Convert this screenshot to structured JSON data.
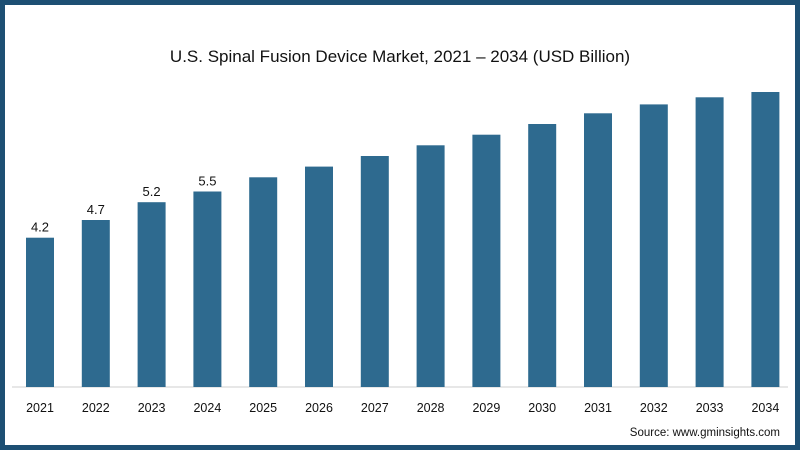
{
  "chart_data": {
    "type": "bar",
    "title": "U.S. Spinal Fusion Device Market, 2021 – 2034 (USD Billion)",
    "categories": [
      "2021",
      "2022",
      "2023",
      "2024",
      "2025",
      "2026",
      "2027",
      "2028",
      "2029",
      "2030",
      "2031",
      "2032",
      "2033",
      "2034"
    ],
    "values": [
      4.2,
      4.7,
      5.2,
      5.5,
      5.9,
      6.2,
      6.5,
      6.8,
      7.1,
      7.4,
      7.7,
      7.95,
      8.15,
      8.3
    ],
    "data_labels": [
      "4.2",
      "4.7",
      "5.2",
      "5.5",
      null,
      null,
      null,
      null,
      null,
      null,
      null,
      null,
      null,
      null
    ],
    "xlabel": "",
    "ylabel": "",
    "ylim": [
      0,
      8.3
    ],
    "grid": false,
    "bar_color": "#2e6a8f"
  },
  "footer": {
    "source": "Source: www.gminsights.com"
  },
  "colors": {
    "frame": "#1d4f73"
  }
}
